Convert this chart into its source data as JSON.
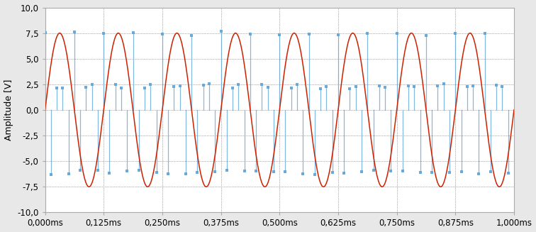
{
  "title": "",
  "ylabel": "Amplitude [V]",
  "xlabel": "",
  "xlim": [
    0.0,
    0.001
  ],
  "ylim": [
    -10.0,
    10.0
  ],
  "yticks": [
    -10.0,
    -7.5,
    -5.0,
    -2.5,
    0.0,
    2.5,
    5.0,
    7.5,
    10.0
  ],
  "xticks": [
    0.0,
    0.000125,
    0.00025,
    0.000375,
    0.0005,
    0.000625,
    0.00075,
    0.000875,
    0.001
  ],
  "xtick_labels": [
    "0,000ms",
    "0,125ms",
    "0,250ms",
    "0,375ms",
    "0,500ms",
    "0,625ms",
    "0,750ms",
    "0,875ms",
    "1,000ms"
  ],
  "ytick_labels": [
    "-10,0",
    "-7,5",
    "-5,0",
    "-2,5",
    "0,0",
    "2,5",
    "5,0",
    "7,5",
    "10,0"
  ],
  "blue_color": "#5ba3d9",
  "red_color": "#cc2200",
  "background_color": "#e8e8e8",
  "plot_bg_color": "#ffffff",
  "grid_color": "#999999",
  "figsize": [
    7.56,
    3.27
  ],
  "dpi": 100,
  "n_blue_samples": 88,
  "blue_max_amp": 7.5,
  "red_freq_hz": 8000,
  "red_amp": 7.5,
  "n_red_points": 2000
}
